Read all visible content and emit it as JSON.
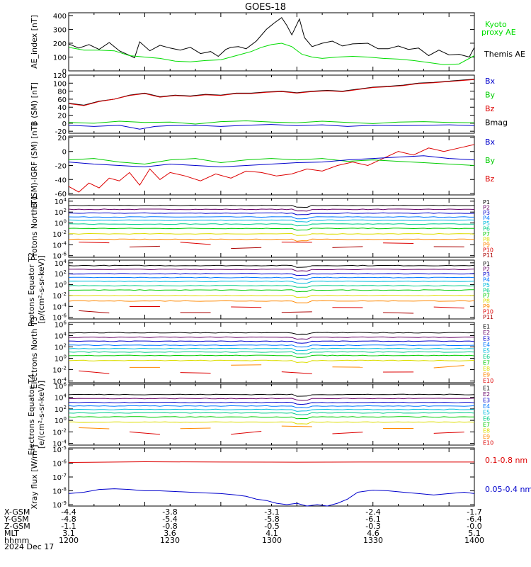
{
  "title": "GOES-18",
  "footer": {
    "rows": [
      {
        "label": "X-GSM",
        "values": [
          "-4.4",
          "-3.8",
          "-3.1",
          "-2.4",
          "-1.7"
        ]
      },
      {
        "label": "Y-GSM",
        "values": [
          "-4.8",
          "-5.4",
          "-5.8",
          "-6.1",
          "-6.4"
        ]
      },
      {
        "label": "Z-GSM",
        "values": [
          "-1.1",
          "-0.8",
          "-0.5",
          "-0.3",
          "-0.0"
        ]
      },
      {
        "label": "MLT",
        "values": [
          "3.1",
          "3.6",
          "4.1",
          "4.6",
          "5.1"
        ]
      },
      {
        "label": "hhmm",
        "values": [
          "1200",
          "1230",
          "1300",
          "1330",
          "1400"
        ]
      }
    ],
    "date": "2024 Dec 17"
  },
  "chart_data": [
    {
      "type": "line",
      "ylabel": "AE_index [nT]",
      "ylim": [
        0,
        420
      ],
      "yticks": [
        "0",
        "100",
        "200",
        "300",
        "400"
      ],
      "legend": [
        {
          "name": "Kyoto proxy AE",
          "color": "#00dd00"
        },
        {
          "name": "Themis AE",
          "color": "#000000"
        }
      ],
      "series": [
        {
          "name": "Themis AE",
          "color": "#000000",
          "x": [
            1200,
            1204,
            1208,
            1212,
            1216,
            1220,
            1223,
            1226,
            1228,
            1232,
            1236,
            1240,
            1244,
            1248,
            1252,
            1256,
            1259,
            1262,
            1264,
            1267,
            1270,
            1274,
            1278,
            1281,
            1284,
            1286,
            1288,
            1291,
            1293,
            1296,
            1300,
            1304,
            1308,
            1312,
            1318,
            1322,
            1326,
            1330,
            1334,
            1338,
            1342,
            1346,
            1350,
            1354,
            1358,
            1360
          ],
          "y": [
            195,
            165,
            190,
            155,
            205,
            145,
            120,
            95,
            210,
            145,
            185,
            165,
            150,
            170,
            125,
            140,
            105,
            155,
            170,
            175,
            160,
            215,
            300,
            345,
            385,
            330,
            260,
            375,
            240,
            175,
            200,
            215,
            180,
            195,
            200,
            160,
            160,
            180,
            155,
            165,
            110,
            150,
            115,
            120,
            100,
            170
          ]
        },
        {
          "name": "Kyoto proxy AE",
          "color": "#00dd00",
          "x": [
            1200,
            1206,
            1212,
            1218,
            1224,
            1230,
            1236,
            1242,
            1248,
            1254,
            1260,
            1264,
            1268,
            1272,
            1276,
            1280,
            1284,
            1288,
            1292,
            1296,
            1300,
            1306,
            1312,
            1318,
            1324,
            1330,
            1336,
            1342,
            1348,
            1354,
            1360
          ],
          "y": [
            170,
            150,
            150,
            145,
            110,
            100,
            90,
            70,
            65,
            75,
            80,
            100,
            120,
            140,
            170,
            190,
            200,
            175,
            120,
            100,
            90,
            100,
            105,
            100,
            90,
            85,
            75,
            60,
            45,
            50,
            110
          ]
        }
      ]
    },
    {
      "type": "line",
      "ylabel": "B (SM) [nT]",
      "ylim": [
        -25,
        120
      ],
      "yticks": [
        "-20",
        "0",
        "20",
        "40",
        "60",
        "80",
        "100",
        "120"
      ],
      "legend": [
        {
          "name": "Bx",
          "color": "#0000cc"
        },
        {
          "name": "By",
          "color": "#00cc00"
        },
        {
          "name": "Bz",
          "color": "#dd0000"
        },
        {
          "name": "Bmag",
          "color": "#000000"
        }
      ],
      "series": [
        {
          "name": "Bmag",
          "color": "#000000",
          "x": [
            1200,
            1206,
            1212,
            1218,
            1224,
            1230,
            1236,
            1242,
            1248,
            1254,
            1260,
            1266,
            1272,
            1278,
            1284,
            1290,
            1296,
            1302,
            1308,
            1314,
            1320,
            1326,
            1332,
            1338,
            1344,
            1350,
            1356,
            1360
          ],
          "y": [
            50,
            45,
            55,
            60,
            70,
            75,
            66,
            70,
            68,
            72,
            70,
            75,
            75,
            78,
            80,
            76,
            80,
            82,
            80,
            85,
            90,
            92,
            95,
            100,
            102,
            105,
            108,
            110
          ]
        },
        {
          "name": "Bz",
          "color": "#dd0000",
          "x": [
            1200,
            1206,
            1212,
            1218,
            1224,
            1230,
            1236,
            1242,
            1248,
            1254,
            1260,
            1266,
            1272,
            1278,
            1284,
            1290,
            1296,
            1302,
            1308,
            1314,
            1320,
            1326,
            1332,
            1338,
            1344,
            1350,
            1356,
            1360
          ],
          "y": [
            49,
            44,
            54,
            60,
            69,
            74,
            65,
            69,
            67,
            71,
            69,
            74,
            74,
            77,
            79,
            75,
            79,
            81,
            79,
            84,
            89,
            91,
            94,
            99,
            101,
            104,
            107,
            109
          ]
        },
        {
          "name": "By",
          "color": "#00cc00",
          "x": [
            1200,
            1210,
            1220,
            1230,
            1240,
            1250,
            1260,
            1270,
            1280,
            1290,
            1300,
            1310,
            1320,
            1330,
            1340,
            1350,
            1360
          ],
          "y": [
            2,
            0,
            5,
            2,
            3,
            -2,
            4,
            6,
            3,
            1,
            5,
            2,
            -1,
            3,
            4,
            2,
            1
          ]
        },
        {
          "name": "Bx",
          "color": "#0000cc",
          "x": [
            1200,
            1210,
            1220,
            1228,
            1234,
            1240,
            1250,
            1260,
            1270,
            1280,
            1290,
            1300,
            1310,
            1320,
            1330,
            1340,
            1350,
            1360
          ],
          "y": [
            -5,
            -8,
            -5,
            -15,
            -8,
            -6,
            -5,
            -8,
            -5,
            -3,
            -6,
            -4,
            -8,
            -5,
            -6,
            -5,
            -4,
            -6
          ]
        }
      ]
    },
    {
      "type": "line",
      "ylabel": "B (SM)-IGRF (SM) [nT]",
      "ylim": [
        -62,
        22
      ],
      "yticks": [
        "-60",
        "-40",
        "-20",
        "0",
        "20"
      ],
      "legend": [
        {
          "name": "Bx",
          "color": "#0000cc"
        },
        {
          "name": "By",
          "color": "#00cc00"
        },
        {
          "name": "Bz",
          "color": "#dd0000"
        }
      ],
      "series": [
        {
          "name": "Bz",
          "color": "#dd0000",
          "x": [
            1200,
            1204,
            1208,
            1212,
            1216,
            1220,
            1224,
            1228,
            1232,
            1236,
            1240,
            1246,
            1252,
            1258,
            1264,
            1270,
            1276,
            1282,
            1288,
            1294,
            1300,
            1306,
            1312,
            1318,
            1324,
            1330,
            1336,
            1342,
            1348,
            1354,
            1360
          ],
          "y": [
            -50,
            -58,
            -45,
            -52,
            -38,
            -42,
            -30,
            -48,
            -25,
            -40,
            -30,
            -35,
            -42,
            -32,
            -38,
            -28,
            -30,
            -35,
            -32,
            -25,
            -28,
            -20,
            -15,
            -20,
            -10,
            0,
            -5,
            5,
            0,
            5,
            10
          ]
        },
        {
          "name": "By",
          "color": "#00cc00",
          "x": [
            1200,
            1210,
            1220,
            1230,
            1240,
            1250,
            1260,
            1270,
            1280,
            1290,
            1300,
            1310,
            1320,
            1330,
            1340,
            1350,
            1360
          ],
          "y": [
            -12,
            -10,
            -15,
            -18,
            -12,
            -10,
            -16,
            -12,
            -10,
            -12,
            -10,
            -14,
            -12,
            -14,
            -16,
            -18,
            -20
          ]
        },
        {
          "name": "Bx",
          "color": "#0000cc",
          "x": [
            1200,
            1210,
            1220,
            1230,
            1240,
            1250,
            1260,
            1270,
            1280,
            1290,
            1300,
            1310,
            1320,
            1330,
            1340,
            1350,
            1360
          ],
          "y": [
            -15,
            -18,
            -20,
            -22,
            -18,
            -20,
            -22,
            -20,
            -18,
            -16,
            -15,
            -12,
            -10,
            -8,
            -6,
            -10,
            -12
          ]
        }
      ]
    },
    {
      "type": "line",
      "ylabel": "Protons North T1",
      "ylog": true,
      "ylim_exp": [
        -6.3,
        4.5
      ],
      "yticks_exp": [
        4,
        2,
        0,
        -2,
        -4,
        -6
      ],
      "legend": [
        {
          "name": "P1",
          "color": "#000000"
        },
        {
          "name": "P2",
          "color": "#660066"
        },
        {
          "name": "P3",
          "color": "#0000cc"
        },
        {
          "name": "P4",
          "color": "#0077ff"
        },
        {
          "name": "P5",
          "color": "#00bbdd"
        },
        {
          "name": "P6",
          "color": "#00cc88"
        },
        {
          "name": "P7",
          "color": "#00cc00"
        },
        {
          "name": "P8",
          "color": "#dddd00"
        },
        {
          "name": "P9",
          "color": "#ff8800"
        },
        {
          "name": "P10",
          "color": "#dd0000"
        },
        {
          "name": "P11",
          "color": "#aa0000"
        }
      ],
      "levels": [
        3.2,
        2.5,
        1.8,
        1.1,
        0.5,
        -0.2,
        -1.0,
        -2.0,
        -3.0,
        -3.8,
        -4.5
      ]
    },
    {
      "type": "line",
      "ylabel": "Protons Equator T2",
      "unit": "[p/(cm²-s-sr-keV)]",
      "ylog": true,
      "ylim_exp": [
        -6.3,
        4.5
      ],
      "yticks_exp": [
        4,
        2,
        0,
        -2,
        -4,
        -6
      ],
      "legend": [
        {
          "name": "P1",
          "color": "#000000"
        },
        {
          "name": "P2",
          "color": "#660066"
        },
        {
          "name": "P3",
          "color": "#0000cc"
        },
        {
          "name": "P4",
          "color": "#0077ff"
        },
        {
          "name": "P5",
          "color": "#00bbdd"
        },
        {
          "name": "P6",
          "color": "#00cc88"
        },
        {
          "name": "P7",
          "color": "#00cc00"
        },
        {
          "name": "P8",
          "color": "#dddd00"
        },
        {
          "name": "P9",
          "color": "#ff8800"
        },
        {
          "name": "P10",
          "color": "#dd0000"
        },
        {
          "name": "P11",
          "color": "#aa0000"
        }
      ],
      "levels": [
        3.5,
        2.8,
        2.0,
        1.3,
        0.6,
        -0.2,
        -1.0,
        -2.0,
        -3.0,
        -4.3,
        -5.0
      ]
    },
    {
      "type": "line",
      "ylabel": "Electrons North T3",
      "ylog": true,
      "ylim_exp": [
        -4.3,
        6.3
      ],
      "yticks_exp": [
        6,
        4,
        2,
        0,
        -2,
        -4
      ],
      "legend": [
        {
          "name": "E1",
          "color": "#000000"
        },
        {
          "name": "E2",
          "color": "#660066"
        },
        {
          "name": "E3",
          "color": "#0000cc"
        },
        {
          "name": "E4",
          "color": "#0077ff"
        },
        {
          "name": "E5",
          "color": "#00bbdd"
        },
        {
          "name": "E6",
          "color": "#00cc88"
        },
        {
          "name": "E7",
          "color": "#00cc00"
        },
        {
          "name": "E8",
          "color": "#dddd00"
        },
        {
          "name": "E9",
          "color": "#ff8800"
        },
        {
          "name": "E10",
          "color": "#dd0000"
        }
      ],
      "levels": [
        4.5,
        3.7,
        3.0,
        2.3,
        1.7,
        1.1,
        0.5,
        -0.4,
        -1.4,
        -2.5
      ]
    },
    {
      "type": "line",
      "ylabel": "Electrons Equator T4",
      "unit": "[e/(cm²-s-sr-keV)]",
      "ylog": true,
      "ylim_exp": [
        -4.3,
        6.3
      ],
      "yticks_exp": [
        6,
        4,
        2,
        0,
        -2,
        -4
      ],
      "legend": [
        {
          "name": "E1",
          "color": "#000000"
        },
        {
          "name": "E2",
          "color": "#660066"
        },
        {
          "name": "E3",
          "color": "#0000cc"
        },
        {
          "name": "E4",
          "color": "#0077ff"
        },
        {
          "name": "E5",
          "color": "#00bbdd"
        },
        {
          "name": "E6",
          "color": "#00cc88"
        },
        {
          "name": "E7",
          "color": "#00cc00"
        },
        {
          "name": "E8",
          "color": "#dddd00"
        },
        {
          "name": "E9",
          "color": "#ff8800"
        },
        {
          "name": "E10",
          "color": "#dd0000"
        }
      ],
      "levels": [
        4.5,
        3.8,
        3.1,
        2.5,
        1.9,
        1.3,
        0.6,
        -0.3,
        -1.2,
        -2.2
      ]
    },
    {
      "type": "line",
      "ylabel": "Xray flux [W/m²]",
      "ylog": true,
      "ylim_exp": [
        -9.1,
        -4.9
      ],
      "yticks_exp": [
        -5,
        -6,
        -7,
        -8,
        -9
      ],
      "legend": [
        {
          "name": "0.1-0.8 nm",
          "color": "#dd0000"
        },
        {
          "name": "0.05-0.4 nm",
          "color": "#0000cc"
        }
      ],
      "series": [
        {
          "name": "0.1-0.8 nm",
          "color": "#dd0000",
          "x": [
            1200,
            1230,
            1260,
            1290,
            1320,
            1360
          ],
          "y_exp": [
            -5.95,
            -5.9,
            -5.92,
            -5.93,
            -5.92,
            -5.92
          ]
        },
        {
          "name": "0.05-0.4 nm",
          "color": "#0000cc",
          "x": [
            1200,
            1206,
            1212,
            1218,
            1224,
            1230,
            1236,
            1242,
            1248,
            1254,
            1260,
            1266,
            1270,
            1274,
            1278,
            1282,
            1286,
            1290,
            1294,
            1298,
            1302,
            1306,
            1310,
            1314,
            1320,
            1326,
            1332,
            1338,
            1344,
            1350,
            1356,
            1360
          ],
          "y_exp": [
            -8.2,
            -8.1,
            -7.9,
            -7.85,
            -7.9,
            -8.0,
            -8.0,
            -8.05,
            -8.1,
            -8.15,
            -8.2,
            -8.3,
            -8.4,
            -8.6,
            -8.7,
            -8.9,
            -9.0,
            -8.9,
            -9.1,
            -9.0,
            -9.1,
            -8.9,
            -8.6,
            -8.1,
            -7.95,
            -8.0,
            -8.1,
            -8.2,
            -8.3,
            -8.2,
            -8.1,
            -8.2
          ]
        }
      ]
    }
  ]
}
